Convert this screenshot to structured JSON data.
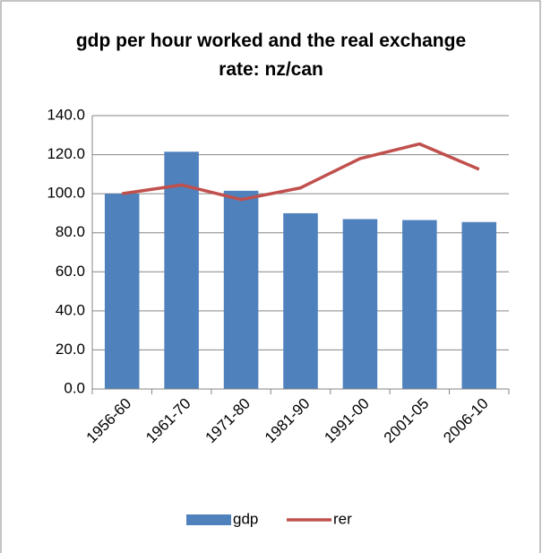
{
  "chart_data": {
    "type": "bar",
    "title": "gdp per hour worked and the real exchange rate: nz/can",
    "categories": [
      "1956-60",
      "1961-70",
      "1971-80",
      "1981-90",
      "1991-00",
      "2001-05",
      "2006-10"
    ],
    "series": [
      {
        "name": "gdp",
        "type": "bar",
        "color": "#4f81bd",
        "values": [
          100,
          121.5,
          101.5,
          90,
          87,
          86.5,
          85.5
        ]
      },
      {
        "name": "rer",
        "type": "line",
        "color": "#c0504d",
        "values": [
          100,
          104.5,
          97,
          103,
          118,
          125.5,
          112.5
        ]
      }
    ],
    "ylim": [
      0,
      140
    ],
    "yticks": [
      {
        "value": 0,
        "label": "0.0"
      },
      {
        "value": 20,
        "label": "20.0"
      },
      {
        "value": 40,
        "label": "40.0"
      },
      {
        "value": 60,
        "label": "60.0"
      },
      {
        "value": 80,
        "label": "80.0"
      },
      {
        "value": 100,
        "label": "100.0"
      },
      {
        "value": 120,
        "label": "120.0"
      },
      {
        "value": 140,
        "label": "140.0"
      }
    ],
    "grid": true,
    "legend": "bottom"
  }
}
